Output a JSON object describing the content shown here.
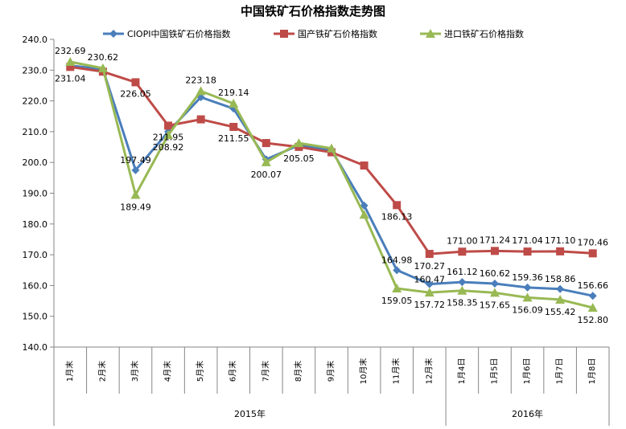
{
  "chart_data": {
    "type": "line",
    "title": "中国铁矿石价格指数走势图",
    "xlabel": "",
    "ylabel": "",
    "ylim": [
      140,
      240
    ],
    "ytick_step": 10,
    "ytick_labels": [
      "140.0",
      "150.0",
      "160.0",
      "170.0",
      "180.0",
      "190.0",
      "200.0",
      "210.0",
      "220.0",
      "230.0",
      "240.0"
    ],
    "grid": false,
    "legend_position": "top",
    "categories": [
      "1月末",
      "2月末",
      "3月末",
      "4月末",
      "5月末",
      "6月末",
      "7月末",
      "8月末",
      "9月末",
      "10月末",
      "11月末",
      "12月末",
      "1月4日",
      "1月5日",
      "1月6日",
      "1月7日",
      "1月8日"
    ],
    "year_groups": [
      {
        "label": "2015年",
        "start": 0,
        "end": 11
      },
      {
        "label": "2016年",
        "start": 12,
        "end": 16
      }
    ],
    "series": [
      {
        "name": "CIOPI中国铁矿石价格指数",
        "color": "#4A7EBB",
        "marker": "diamond",
        "values": [
          231.5,
          230.3,
          197.49,
          210.0,
          221.2,
          217.5,
          201.0,
          205.6,
          204.0,
          186.0,
          164.98,
          160.47,
          161.12,
          160.62,
          159.36,
          158.86,
          156.66
        ],
        "labels": [
          "",
          "",
          "197.49",
          "",
          "",
          "",
          "",
          "",
          "",
          "",
          "164.98",
          "160.47",
          "161.12",
          "160.62",
          "159.36",
          "158.86",
          "156.66"
        ]
      },
      {
        "name": "国产铁矿石价格指数",
        "color": "#BE4B48",
        "marker": "square",
        "values": [
          231.04,
          229.5,
          226.05,
          211.95,
          214.0,
          211.55,
          206.3,
          205.05,
          203.3,
          199.0,
          186.13,
          170.27,
          171.0,
          171.24,
          171.04,
          171.1,
          170.46
        ],
        "labels": [
          "231.04",
          "",
          "226.05",
          "211.95",
          "",
          "211.55",
          "",
          "205.05",
          "",
          "",
          "186.13",
          "170.27",
          "171.00",
          "171.24",
          "171.04",
          "171.10",
          "170.46"
        ]
      },
      {
        "name": "进口铁矿石价格指数",
        "color": "#98B954",
        "marker": "triangle",
        "values": [
          232.69,
          230.62,
          189.49,
          208.92,
          223.18,
          219.14,
          200.07,
          206.3,
          204.6,
          183.0,
          159.05,
          157.72,
          158.35,
          157.65,
          156.09,
          155.42,
          152.8
        ],
        "labels": [
          "232.69",
          "230.62",
          "189.49",
          "208.92",
          "223.18",
          "219.14",
          "200.07",
          "",
          "",
          "",
          "159.05",
          "157.72",
          "158.35",
          "157.65",
          "156.09",
          "155.42",
          "152.80"
        ]
      }
    ]
  }
}
